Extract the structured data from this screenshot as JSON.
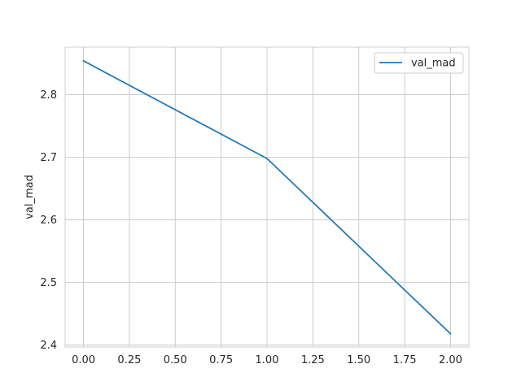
{
  "chart_data": {
    "type": "line",
    "title": "",
    "xlabel": "",
    "ylabel": "val_mad",
    "xlim": [
      -0.1,
      2.1
    ],
    "ylim": [
      2.397,
      2.876
    ],
    "xticks": [
      "0.00",
      "0.25",
      "0.50",
      "0.75",
      "1.00",
      "1.25",
      "1.50",
      "1.75",
      "2.00"
    ],
    "yticks": [
      "2.4",
      "2.5",
      "2.6",
      "2.7",
      "2.8"
    ],
    "grid": true,
    "legend_position": "top-right",
    "series": [
      {
        "name": "val_mad",
        "color": "#1f77b4",
        "x": [
          0,
          1,
          2
        ],
        "y": [
          2.854,
          2.698,
          2.418
        ]
      }
    ]
  }
}
